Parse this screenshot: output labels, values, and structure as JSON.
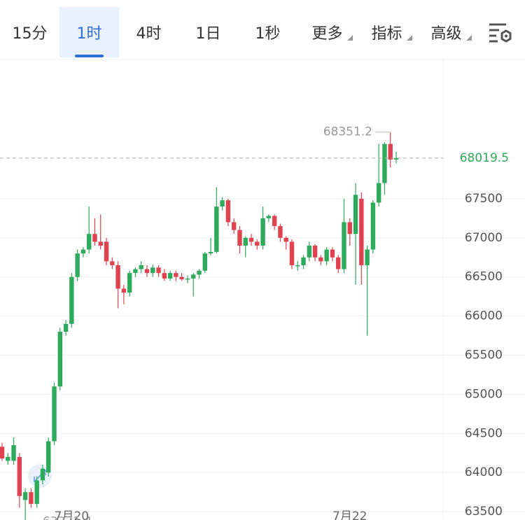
{
  "tabs": [
    "15分",
    "1时",
    "4时",
    "1日",
    "1秒",
    "更多",
    "指标",
    "高级"
  ],
  "active_tab": 1,
  "dropdown_tabs": [
    5,
    6,
    7
  ],
  "chart_data": {
    "type": "candlestick",
    "up_color": "#2eaa5c",
    "down_color": "#e0424f",
    "categories": [
      null,
      null,
      null,
      null,
      null,
      null,
      null,
      null,
      null,
      null,
      null,
      null,
      "7月20",
      null,
      null,
      null,
      null,
      null,
      null,
      null,
      null,
      null,
      null,
      null,
      null,
      null,
      null,
      null,
      null,
      null,
      null,
      null,
      null,
      null,
      null,
      null,
      null,
      null,
      null,
      null,
      null,
      null,
      null,
      null,
      null,
      null,
      null,
      null,
      null,
      null,
      null,
      null,
      null,
      null,
      null,
      null,
      null,
      null,
      null,
      null,
      "7月22",
      null,
      null,
      null,
      null,
      null,
      null,
      null,
      null
    ],
    "open": [
      64330,
      64150,
      64150,
      64200,
      63650,
      63750,
      63600,
      63900,
      64000,
      64400,
      65100,
      65800,
      65900,
      66500,
      66800,
      66850,
      67050,
      66950,
      66950,
      66700,
      66650,
      66350,
      66300,
      66550,
      66600,
      66600,
      66550,
      66620,
      66550,
      66480,
      66550,
      66500,
      66470,
      66480,
      66530,
      66580,
      66800,
      66820,
      67400,
      67480,
      67200,
      67100,
      66900,
      67000,
      66950,
      66900,
      67250,
      67280,
      67150,
      67000,
      66950,
      66650,
      66650,
      66750,
      66900,
      66750,
      66700,
      66850,
      66750,
      66600,
      67200,
      67050,
      67500,
      66650,
      66850,
      67450,
      67700,
      68200,
      68000
    ],
    "high": [
      64380,
      64250,
      64450,
      64250,
      63800,
      63800,
      63950,
      64100,
      64450,
      65150,
      65850,
      65950,
      66550,
      66850,
      66880,
      67400,
      67250,
      67300,
      67000,
      66750,
      66700,
      66400,
      66580,
      66620,
      66700,
      66650,
      66660,
      66650,
      66600,
      66580,
      66580,
      66550,
      66520,
      66550,
      66600,
      66820,
      67000,
      67650,
      67520,
      67500,
      67250,
      67150,
      67020,
      67050,
      66980,
      67400,
      67300,
      67300,
      67180,
      67020,
      66980,
      66700,
      66780,
      66950,
      66920,
      66780,
      66880,
      66880,
      66780,
      67500,
      67250,
      67700,
      67580,
      66900,
      67480,
      68200,
      68220,
      68351.2,
      68100
    ],
    "low": [
      64150,
      64100,
      64100,
      63550,
      63371.4,
      63550,
      63550,
      63850,
      63950,
      64350,
      65050,
      65750,
      65850,
      66450,
      66750,
      66800,
      66900,
      66850,
      66650,
      66600,
      66100,
      66150,
      66250,
      66500,
      66550,
      66500,
      66500,
      66500,
      66450,
      66450,
      66450,
      66450,
      66420,
      66250,
      66480,
      66550,
      66780,
      66800,
      67350,
      67150,
      67050,
      66800,
      66750,
      66900,
      66850,
      66850,
      67200,
      67100,
      66950,
      66850,
      66600,
      66580,
      66600,
      66700,
      66700,
      66650,
      66650,
      66700,
      66550,
      66550,
      66900,
      66400,
      66400,
      65750,
      66800,
      67400,
      67550,
      67900,
      67950
    ],
    "close": [
      64180,
      64200,
      64350,
      63700,
      63750,
      63600,
      63900,
      64050,
      64400,
      65100,
      65800,
      65900,
      66500,
      66800,
      66850,
      67050,
      66950,
      66900,
      66700,
      66650,
      66350,
      66300,
      66550,
      66600,
      66650,
      66550,
      66620,
      66550,
      66480,
      66550,
      66500,
      66470,
      66480,
      66530,
      66580,
      66800,
      66820,
      67400,
      67480,
      67200,
      67100,
      66900,
      67000,
      66950,
      66900,
      67250,
      67280,
      67150,
      67000,
      66950,
      66650,
      66650,
      66750,
      66900,
      66750,
      66700,
      66850,
      66750,
      66600,
      67200,
      67050,
      67550,
      66650,
      66850,
      67450,
      67700,
      68200,
      68000,
      68019.5
    ],
    "max_index": 67,
    "min_index": 4,
    "ylim": [
      63233,
      69118
    ],
    "yticks": [
      63500,
      64000,
      64500,
      65000,
      65500,
      66000,
      66500,
      67000,
      67500
    ],
    "grid": true
  }
}
